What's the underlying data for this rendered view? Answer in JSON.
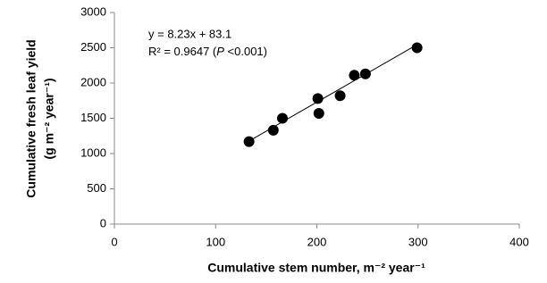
{
  "chart_data": {
    "type": "scatter",
    "x_label": "Cumulative stem number, m⁻² year⁻¹",
    "y_label": [
      "Cumulative fresh leaf yield",
      "(g m⁻² year⁻¹)"
    ],
    "annotation": {
      "equation": "y = 8.23x + 83.1",
      "r2_prefix": "R² = 0.9647 (",
      "p_symbol": "P",
      "r2_suffix": " <0.001)"
    },
    "trendline": {
      "slope": 8.23,
      "intercept": 83.1
    },
    "x": [
      133,
      157,
      166,
      201,
      202,
      223,
      237,
      248,
      299
    ],
    "values": [
      1170,
      1330,
      1500,
      1780,
      1570,
      1820,
      2110,
      2130,
      2500
    ],
    "color": "#000000",
    "xlim": [
      0,
      400
    ],
    "xticks": [
      0,
      100,
      200,
      300,
      400
    ],
    "ylim": [
      0,
      3000
    ],
    "yticks": [
      0,
      500,
      1000,
      1500,
      2000,
      2500,
      3000
    ],
    "grid": false
  }
}
